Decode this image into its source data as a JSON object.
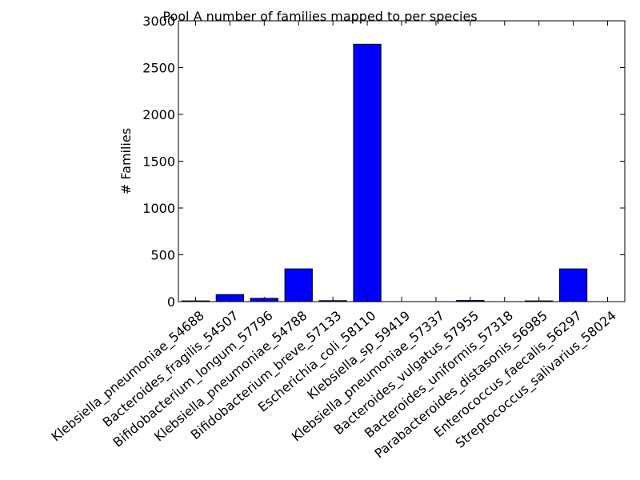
{
  "chart_data": {
    "type": "bar",
    "title": "Pool A number of families mapped to per species",
    "xlabel": "",
    "ylabel": "# Families",
    "categories": [
      "Klebsiella_pneumoniae_54688",
      "Bacteroides_fragilis_54507",
      "Bifidobacterium_longum_57796",
      "Klebsiella_pneumoniae_54788",
      "Bifidobacterium_breve_57133",
      "Escherichia_coli_58110",
      "Klebsiella_sp_59419",
      "Klebsiella_pneumoniae_57337",
      "Bacteroides_vulgatus_57955",
      "Bacteroides_uniformis_57318",
      "Parabacteroides_distasonis_56985",
      "Enterococcus_faecalis_56297",
      "Streptococcus_salivarius_58024"
    ],
    "values": [
      8,
      75,
      35,
      350,
      10,
      2750,
      0,
      0,
      12,
      0,
      8,
      350,
      0
    ],
    "ylim": [
      0,
      3000
    ],
    "yticks": [
      0,
      500,
      1000,
      1500,
      2000,
      2500,
      3000
    ],
    "bar_color": "#0000ff",
    "grid": false,
    "legend": "none"
  }
}
